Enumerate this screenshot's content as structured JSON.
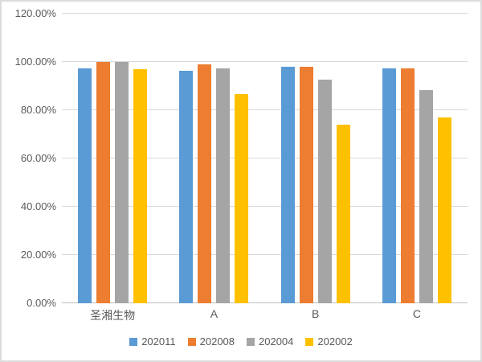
{
  "chart_data": {
    "type": "bar",
    "title": "",
    "categories": [
      "圣湘生物",
      "A",
      "B",
      "C"
    ],
    "series": [
      {
        "name": "202011",
        "color": "#5B9BD5",
        "values": [
          97.5,
          96.3,
          98.0,
          97.2
        ]
      },
      {
        "name": "202008",
        "color": "#ED7D31",
        "values": [
          100.0,
          99.0,
          98.0,
          97.2
        ]
      },
      {
        "name": "202004",
        "color": "#A5A5A5",
        "values": [
          100.0,
          97.3,
          92.8,
          88.3
        ]
      },
      {
        "name": "202002",
        "color": "#FFC000",
        "values": [
          96.9,
          86.6,
          74.1,
          76.9
        ]
      }
    ],
    "xlabel": "",
    "ylabel": "",
    "ylim": [
      0,
      120
    ],
    "ytick_step": 20,
    "ytick_labels": [
      "0.00%",
      "20.00%",
      "40.00%",
      "60.00%",
      "80.00%",
      "100.00%",
      "120.00%"
    ],
    "grid": true,
    "legend_position": "bottom",
    "colors": {
      "axis_text": "#595959",
      "gridline": "#D9D9D9",
      "axis_line": "#BFBFBF",
      "background": "#FFFFFF",
      "frame_border": "#DCDCDC"
    }
  }
}
